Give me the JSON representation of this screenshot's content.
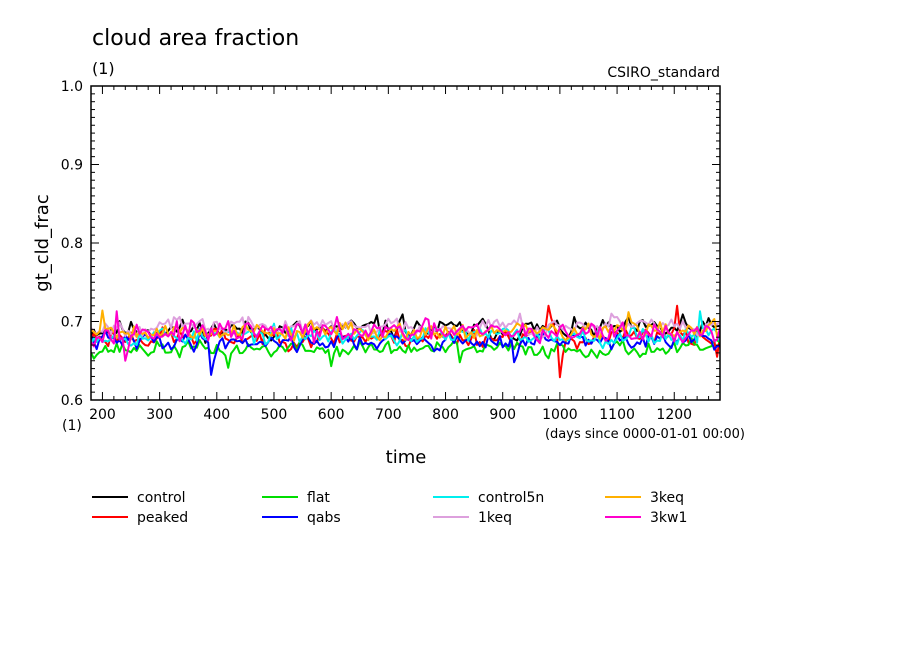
{
  "chart_data": {
    "type": "line",
    "title": "cloud area fraction",
    "title_unit": "(1)",
    "top_right_label": "CSIRO_standard",
    "ylabel": "gt_cld_frac",
    "y_unit": "(1)",
    "xlabel": "time",
    "x_unit_note": "(days since 0000-01-01 00:00)",
    "xlim": [
      180,
      1280
    ],
    "ylim": [
      0.6,
      1.0
    ],
    "x_ticks": [
      200,
      300,
      400,
      500,
      600,
      700,
      800,
      900,
      1000,
      1100,
      1200
    ],
    "x_tick_labels": [
      "200",
      "300",
      "400",
      "500",
      "600",
      "700",
      "800",
      "900",
      "1000",
      "1100",
      "1200"
    ],
    "y_ticks": [
      0.6,
      0.7,
      0.8,
      0.9,
      1.0
    ],
    "y_tick_labels": [
      "0.6",
      "0.7",
      "0.8",
      "0.9",
      "1.0"
    ],
    "x_sampling": {
      "start": 180,
      "end": 1280,
      "step": 5
    },
    "series": [
      {
        "name": "control",
        "color": "#000000",
        "mean": 0.69,
        "amp": 0.011,
        "seed": 11,
        "spikes": [
          [
            680,
            0.708
          ],
          [
            725,
            0.709
          ],
          [
            1215,
            0.709
          ]
        ]
      },
      {
        "name": "peaked",
        "color": "#ff0000",
        "mean": 0.68,
        "amp": 0.011,
        "seed": 23,
        "spikes": [
          [
            980,
            0.72
          ],
          [
            1000,
            0.629
          ],
          [
            1205,
            0.72
          ],
          [
            1275,
            0.655
          ]
        ]
      },
      {
        "name": "flat",
        "color": "#00dd00",
        "mean": 0.665,
        "amp": 0.009,
        "seed": 37,
        "spikes": [
          [
            420,
            0.641
          ],
          [
            600,
            0.643
          ],
          [
            825,
            0.648
          ]
        ]
      },
      {
        "name": "qabs",
        "color": "#0000ff",
        "mean": 0.675,
        "amp": 0.01,
        "seed": 41,
        "spikes": [
          [
            390,
            0.632
          ],
          [
            920,
            0.648
          ]
        ]
      },
      {
        "name": "control5n",
        "color": "#00eeee",
        "mean": 0.682,
        "amp": 0.01,
        "seed": 53,
        "spikes": [
          [
            1245,
            0.713
          ]
        ]
      },
      {
        "name": "1keq",
        "color": "#dda0dd",
        "mean": 0.694,
        "amp": 0.01,
        "seed": 67,
        "spikes": [
          [
            930,
            0.71
          ],
          [
            1090,
            0.71
          ]
        ]
      },
      {
        "name": "3keq",
        "color": "#ffb000",
        "mean": 0.688,
        "amp": 0.01,
        "seed": 79,
        "spikes": [
          [
            200,
            0.714
          ],
          [
            1120,
            0.712
          ]
        ]
      },
      {
        "name": "3kw1",
        "color": "#ff00cc",
        "mean": 0.686,
        "amp": 0.012,
        "seed": 97,
        "spikes": [
          [
            225,
            0.713
          ],
          [
            240,
            0.65
          ]
        ]
      }
    ],
    "legend_placement": "bottom",
    "grid": false
  }
}
